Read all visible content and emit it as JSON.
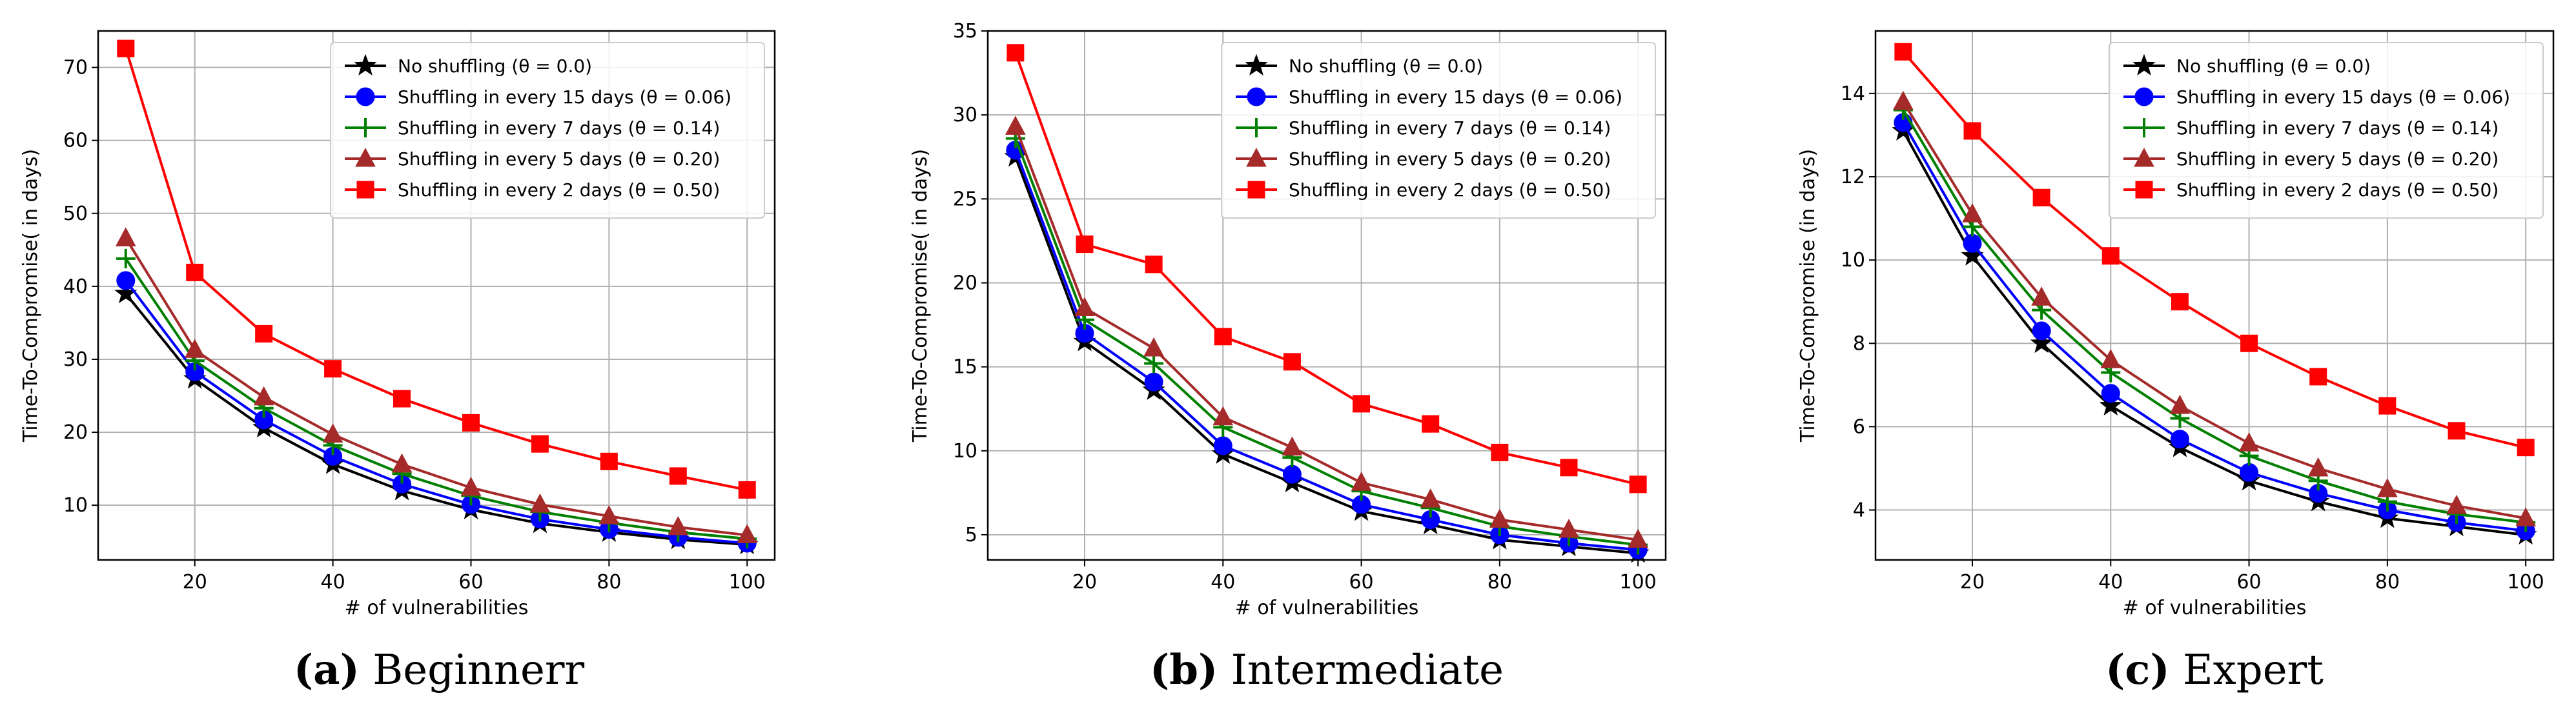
{
  "legend_labels": [
    "No shuffling (θ = 0.0)",
    "Shuffling in every 15 days (θ = 0.06)",
    "Shuffling in every 7 days (θ = 0.14)",
    "Shuffling in every 5 days (θ = 0.20)",
    "Shuffling in every 2 days (θ = 0.50)"
  ],
  "series_style": [
    {
      "color": "#000000",
      "marker": "star"
    },
    {
      "color": "#0000ff",
      "marker": "circle"
    },
    {
      "color": "#008000",
      "marker": "plus"
    },
    {
      "color": "#a52a2a",
      "marker": "triangle"
    },
    {
      "color": "#ff0000",
      "marker": "square"
    }
  ],
  "chart_data": [
    {
      "type": "line",
      "caption_letter": "(a)",
      "caption_text": "Beginnerr",
      "xlabel": "# of vulnerabilities",
      "ylabel": "Time-To-Compromise( in days)",
      "xlim": [
        6,
        104
      ],
      "ylim": [
        2.5,
        75
      ],
      "xticks": [
        20,
        40,
        60,
        80,
        100
      ],
      "yticks": [
        10,
        20,
        30,
        40,
        50,
        60,
        70
      ],
      "grid": true,
      "legend_position": "upper right",
      "x": [
        10,
        20,
        30,
        40,
        50,
        60,
        70,
        80,
        90,
        100
      ],
      "series": [
        {
          "name": "No shuffling (θ = 0.0)",
          "values": [
            39.0,
            27.3,
            20.6,
            15.6,
            12.0,
            9.4,
            7.5,
            6.3,
            5.3,
            4.6
          ]
        },
        {
          "name": "Shuffling in every 15 days (θ = 0.06)",
          "values": [
            40.8,
            28.3,
            21.7,
            16.7,
            12.9,
            10.1,
            8.1,
            6.7,
            5.6,
            4.8
          ]
        },
        {
          "name": "Shuffling in every 7 days (θ = 0.14)",
          "values": [
            43.8,
            29.8,
            23.3,
            18.2,
            14.3,
            11.3,
            9.1,
            7.6,
            6.3,
            5.4
          ]
        },
        {
          "name": "Shuffling in every 5 days (θ = 0.20)",
          "values": [
            46.6,
            31.3,
            24.8,
            19.7,
            15.6,
            12.4,
            10.1,
            8.5,
            7.0,
            5.9
          ]
        },
        {
          "name": "Shuffling in every 2 days (θ = 0.50)",
          "values": [
            72.6,
            41.9,
            33.5,
            28.7,
            24.6,
            21.3,
            18.4,
            16.0,
            14.0,
            12.1
          ]
        }
      ]
    },
    {
      "type": "line",
      "caption_letter": "(b)",
      "caption_text": "Intermediate",
      "xlabel": "# of vulnerabilities",
      "ylabel": "Time-To-Compromise( in days)",
      "xlim": [
        6,
        104
      ],
      "ylim": [
        3.5,
        35
      ],
      "xticks": [
        20,
        40,
        60,
        80,
        100
      ],
      "yticks": [
        5,
        10,
        15,
        20,
        25,
        30,
        35
      ],
      "grid": true,
      "legend_position": "upper right",
      "x": [
        10,
        20,
        30,
        40,
        50,
        60,
        70,
        80,
        90,
        100
      ],
      "series": [
        {
          "name": "No shuffling (θ = 0.0)",
          "values": [
            27.5,
            16.5,
            13.6,
            9.8,
            8.1,
            6.4,
            5.6,
            4.7,
            4.3,
            3.9
          ]
        },
        {
          "name": "Shuffling in every 15 days (θ = 0.06)",
          "values": [
            27.9,
            17.0,
            14.1,
            10.3,
            8.6,
            6.8,
            5.9,
            5.0,
            4.5,
            4.1
          ]
        },
        {
          "name": "Shuffling in every 7 days (θ = 0.14)",
          "values": [
            28.6,
            17.8,
            15.2,
            11.4,
            9.6,
            7.6,
            6.6,
            5.5,
            4.9,
            4.4
          ]
        },
        {
          "name": "Shuffling in every 5 days (θ = 0.20)",
          "values": [
            29.3,
            18.5,
            16.1,
            12.0,
            10.2,
            8.1,
            7.1,
            5.9,
            5.3,
            4.7
          ]
        },
        {
          "name": "Shuffling in every 2 days (θ = 0.50)",
          "values": [
            33.7,
            22.3,
            21.1,
            16.8,
            15.3,
            12.8,
            11.6,
            9.9,
            9.0,
            8.0
          ]
        }
      ]
    },
    {
      "type": "line",
      "caption_letter": "(c)",
      "caption_text": "Expert",
      "xlabel": "# of vulnerabilities",
      "ylabel": "Time-To-Compromise (in days)",
      "xlim": [
        6,
        104
      ],
      "ylim": [
        2.8,
        15.5
      ],
      "xticks": [
        20,
        40,
        60,
        80,
        100
      ],
      "yticks": [
        4,
        6,
        8,
        10,
        12,
        14
      ],
      "grid": true,
      "legend_position": "upper right",
      "x": [
        10,
        20,
        30,
        40,
        50,
        60,
        70,
        80,
        90,
        100
      ],
      "series": [
        {
          "name": "No shuffling (θ = 0.0)",
          "values": [
            13.1,
            10.1,
            8.0,
            6.5,
            5.5,
            4.7,
            4.2,
            3.8,
            3.6,
            3.4
          ]
        },
        {
          "name": "Shuffling in every 15 days (θ = 0.06)",
          "values": [
            13.3,
            10.4,
            8.3,
            6.8,
            5.7,
            4.9,
            4.4,
            4.0,
            3.7,
            3.5
          ]
        },
        {
          "name": "Shuffling in every 7 days (θ = 0.14)",
          "values": [
            13.6,
            10.8,
            8.8,
            7.3,
            6.2,
            5.3,
            4.7,
            4.2,
            3.9,
            3.7
          ]
        },
        {
          "name": "Shuffling in every 5 days (θ = 0.20)",
          "values": [
            13.8,
            11.1,
            9.1,
            7.6,
            6.5,
            5.6,
            5.0,
            4.5,
            4.1,
            3.8
          ]
        },
        {
          "name": "Shuffling in every 2 days (θ = 0.50)",
          "values": [
            15.0,
            13.1,
            11.5,
            10.1,
            9.0,
            8.0,
            7.2,
            6.5,
            5.9,
            5.5
          ]
        }
      ]
    }
  ]
}
